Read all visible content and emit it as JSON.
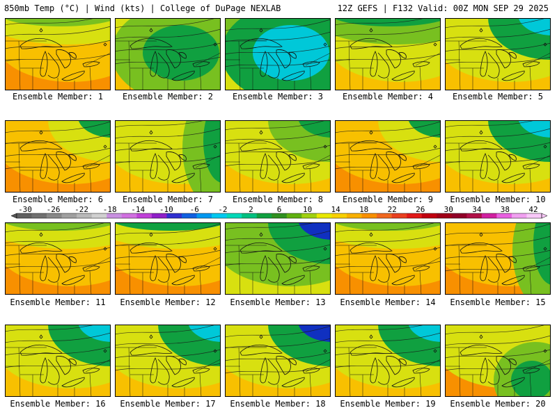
{
  "header": {
    "left": "850mb Temp (°C) | Wind (kts) | College of DuPage NEXLAB",
    "right": "12Z GEFS | F132 Valid: 00Z MON SEP 29 2025"
  },
  "caption_prefix": "Ensemble Member:",
  "members": [
    {
      "number": 1,
      "caption": "Ensemble Member: 1",
      "palette": [
        3,
        4,
        5,
        6
      ],
      "cool_zone": "top"
    },
    {
      "number": 2,
      "caption": "Ensemble Member: 2",
      "palette": [
        2,
        3,
        4,
        5
      ],
      "cool_zone": "center"
    },
    {
      "number": 3,
      "caption": "Ensemble Member: 3",
      "palette": [
        1,
        2,
        3,
        4
      ],
      "cool_zone": "center"
    },
    {
      "number": 4,
      "caption": "Ensemble Member: 4",
      "palette": [
        2,
        3,
        4,
        5
      ],
      "cool_zone": "top"
    },
    {
      "number": 5,
      "caption": "Ensemble Member: 5",
      "palette": [
        1,
        2,
        4,
        5
      ],
      "cool_zone": "top-right"
    },
    {
      "number": 6,
      "caption": "Ensemble Member: 6",
      "palette": [
        2,
        4,
        5,
        6
      ],
      "cool_zone": "top-right"
    },
    {
      "number": 7,
      "caption": "Ensemble Member: 7",
      "palette": [
        2,
        3,
        4,
        5
      ],
      "cool_zone": "right"
    },
    {
      "number": 8,
      "caption": "Ensemble Member: 8",
      "palette": [
        2,
        3,
        4,
        5
      ],
      "cool_zone": "top-right"
    },
    {
      "number": 9,
      "caption": "Ensemble Member: 9",
      "palette": [
        2,
        4,
        5,
        6
      ],
      "cool_zone": "top-right"
    },
    {
      "number": 10,
      "caption": "Ensemble Member: 10",
      "palette": [
        1,
        2,
        4,
        5
      ],
      "cool_zone": "top-right"
    },
    {
      "number": 11,
      "caption": "Ensemble Member: 11",
      "palette": [
        3,
        4,
        5,
        6
      ],
      "cool_zone": "top"
    },
    {
      "number": 12,
      "caption": "Ensemble Member: 12",
      "palette": [
        2,
        4,
        5,
        6
      ],
      "cool_zone": "top"
    },
    {
      "number": 13,
      "caption": "Ensemble Member: 13",
      "palette": [
        0,
        2,
        3,
        4
      ],
      "cool_zone": "top-right"
    },
    {
      "number": 14,
      "caption": "Ensemble Member: 14",
      "palette": [
        3,
        4,
        5,
        6
      ],
      "cool_zone": "top"
    },
    {
      "number": 15,
      "caption": "Ensemble Member: 15",
      "palette": [
        2,
        3,
        5,
        6
      ],
      "cool_zone": "right"
    },
    {
      "number": 16,
      "caption": "Ensemble Member: 16",
      "palette": [
        1,
        2,
        4,
        5
      ],
      "cool_zone": "top-right"
    },
    {
      "number": 17,
      "caption": "Ensemble Member: 17",
      "palette": [
        1,
        2,
        4,
        5
      ],
      "cool_zone": "top-right"
    },
    {
      "number": 18,
      "caption": "Ensemble Member: 18",
      "palette": [
        0,
        2,
        4,
        5
      ],
      "cool_zone": "top-right"
    },
    {
      "number": 19,
      "caption": "Ensemble Member: 19",
      "palette": [
        1,
        2,
        4,
        5
      ],
      "cool_zone": "top-right"
    },
    {
      "number": 20,
      "caption": "Ensemble Member: 20",
      "palette": [
        2,
        3,
        4,
        6
      ],
      "cool_zone": "bottom-right"
    }
  ],
  "colorbar": {
    "labels": [
      "-30",
      "-26",
      "-22",
      "-18",
      "-14",
      "-10",
      "-6",
      "-2",
      "2",
      "6",
      "10",
      "14",
      "18",
      "22",
      "26",
      "30",
      "34",
      "38",
      "42"
    ],
    "colors": [
      "#606060",
      "#707070",
      "#888888",
      "#a0a0a0",
      "#b8b8b8",
      "#d0d0d0",
      "#c890e0",
      "#d070e0",
      "#c040d8",
      "#9020c8",
      "#3030d0",
      "#1060e0",
      "#0098f0",
      "#00c8f0",
      "#00d8b8",
      "#00c080",
      "#10a040",
      "#309020",
      "#60b010",
      "#a0d010",
      "#e8e800",
      "#f8d000",
      "#f8b000",
      "#f89000",
      "#f06820",
      "#e84020",
      "#e01818",
      "#c00010",
      "#a00018",
      "#900028",
      "#b01048",
      "#d020a0",
      "#e860e0",
      "#f0a0f0",
      "#f8c8f8"
    ],
    "temp_colors": [
      "#1030c0",
      "#00c8d8",
      "#10a040",
      "#78c020",
      "#d8e010",
      "#f8c000",
      "#f89000",
      "#f05020"
    ]
  }
}
